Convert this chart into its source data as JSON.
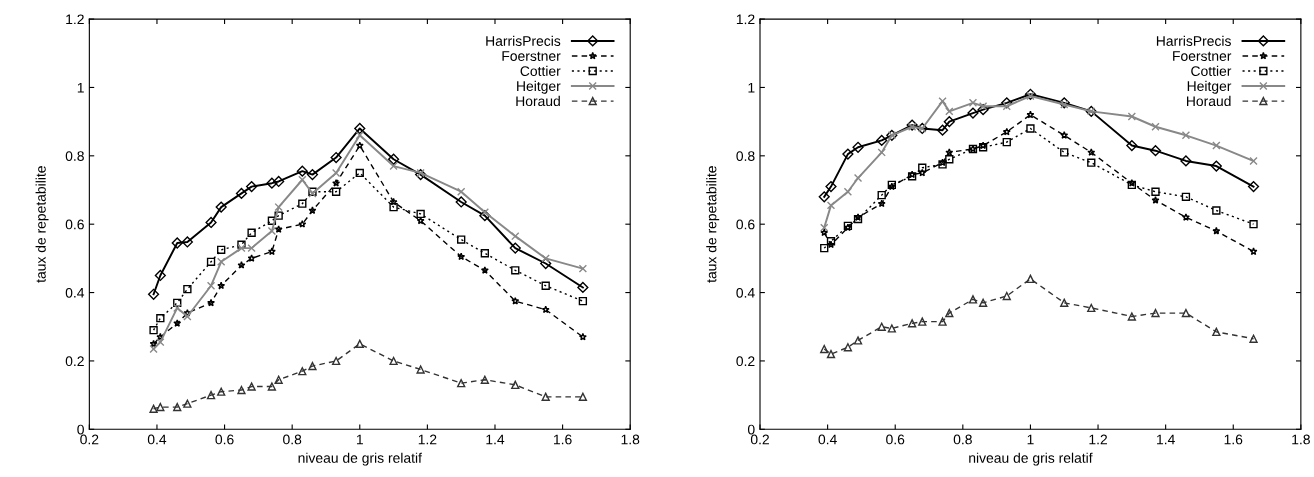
{
  "chart_data": [
    {
      "type": "line",
      "xlabel": "niveau de gris relatif",
      "ylabel": "taux de repetabilite",
      "xlim": [
        0.2,
        1.8
      ],
      "ylim": [
        0,
        1.2
      ],
      "xticks": [
        0.2,
        0.4,
        0.6,
        0.8,
        1,
        1.2,
        1.4,
        1.6,
        1.8
      ],
      "yticks": [
        0,
        0.2,
        0.4,
        0.6,
        0.8,
        1,
        1.2
      ],
      "grid": false,
      "legend": "top right",
      "x": [
        0.39,
        0.41,
        0.46,
        0.49,
        0.56,
        0.59,
        0.65,
        0.68,
        0.74,
        0.76,
        0.83,
        0.86,
        0.93,
        1.0,
        1.1,
        1.18,
        1.3,
        1.37,
        1.46,
        1.55,
        1.66
      ],
      "series": [
        {
          "name": "HarrisPrecis",
          "color": "#000000",
          "marker": "diamond",
          "line_style": "solid",
          "values": [
            0.395,
            0.45,
            0.545,
            0.548,
            0.605,
            0.65,
            0.69,
            0.71,
            0.72,
            0.725,
            0.755,
            0.745,
            0.795,
            0.88,
            0.79,
            0.745,
            0.665,
            0.625,
            0.53,
            0.485,
            0.415
          ]
        },
        {
          "name": "Foerstner",
          "color": "#000000",
          "marker": "star",
          "line_style": "dashed",
          "values": [
            0.25,
            0.27,
            0.31,
            0.34,
            0.37,
            0.42,
            0.48,
            0.5,
            0.52,
            0.585,
            0.6,
            0.64,
            0.72,
            0.83,
            0.665,
            0.61,
            0.505,
            0.465,
            0.375,
            0.35,
            0.27
          ]
        },
        {
          "name": "Cottier",
          "color": "#000000",
          "marker": "square",
          "line_style": "dotted",
          "values": [
            0.29,
            0.325,
            0.37,
            0.41,
            0.49,
            0.525,
            0.54,
            0.575,
            0.61,
            0.625,
            0.66,
            0.695,
            0.695,
            0.75,
            0.65,
            0.63,
            0.555,
            0.515,
            0.465,
            0.42,
            0.375
          ]
        },
        {
          "name": "Heitger",
          "color": "#888888",
          "marker": "cross",
          "line_style": "solid",
          "values": [
            0.235,
            0.255,
            0.355,
            0.33,
            0.42,
            0.49,
            0.53,
            0.53,
            0.58,
            0.65,
            0.73,
            0.69,
            0.75,
            0.86,
            0.77,
            0.75,
            0.695,
            0.635,
            0.565,
            0.5,
            0.47
          ]
        },
        {
          "name": "Horaud",
          "color": "#333333",
          "marker": "triangle",
          "line_style": "dashed",
          "values": [
            0.06,
            0.065,
            0.065,
            0.075,
            0.1,
            0.11,
            0.115,
            0.125,
            0.125,
            0.145,
            0.17,
            0.185,
            0.2,
            0.25,
            0.2,
            0.175,
            0.135,
            0.145,
            0.13,
            0.095,
            0.095
          ]
        }
      ]
    },
    {
      "type": "line",
      "xlabel": "niveau de gris relatif",
      "ylabel": "taux de repetabilite",
      "xlim": [
        0.2,
        1.8
      ],
      "ylim": [
        0,
        1.2
      ],
      "xticks": [
        0.2,
        0.4,
        0.6,
        0.8,
        1,
        1.2,
        1.4,
        1.6,
        1.8
      ],
      "yticks": [
        0,
        0.2,
        0.4,
        0.6,
        0.8,
        1,
        1.2
      ],
      "grid": false,
      "legend": "top right",
      "x": [
        0.39,
        0.41,
        0.46,
        0.49,
        0.56,
        0.59,
        0.65,
        0.68,
        0.74,
        0.76,
        0.83,
        0.86,
        0.93,
        1.0,
        1.1,
        1.18,
        1.3,
        1.37,
        1.46,
        1.55,
        1.66
      ],
      "series": [
        {
          "name": "HarrisPrecis",
          "color": "#000000",
          "marker": "diamond",
          "line_style": "solid",
          "values": [
            0.68,
            0.71,
            0.805,
            0.825,
            0.845,
            0.86,
            0.89,
            0.88,
            0.875,
            0.9,
            0.925,
            0.935,
            0.955,
            0.98,
            0.955,
            0.93,
            0.83,
            0.815,
            0.785,
            0.77,
            0.71
          ]
        },
        {
          "name": "Foerstner",
          "color": "#000000",
          "marker": "star",
          "line_style": "dashed",
          "values": [
            0.575,
            0.54,
            0.59,
            0.62,
            0.66,
            0.71,
            0.745,
            0.75,
            0.78,
            0.81,
            0.82,
            0.83,
            0.87,
            0.92,
            0.86,
            0.81,
            0.72,
            0.67,
            0.62,
            0.58,
            0.52
          ]
        },
        {
          "name": "Cottier",
          "color": "#000000",
          "marker": "square",
          "line_style": "dotted",
          "values": [
            0.53,
            0.55,
            0.595,
            0.615,
            0.685,
            0.715,
            0.74,
            0.765,
            0.775,
            0.79,
            0.82,
            0.825,
            0.84,
            0.88,
            0.81,
            0.78,
            0.715,
            0.695,
            0.68,
            0.64,
            0.6
          ]
        },
        {
          "name": "Heitger",
          "color": "#888888",
          "marker": "cross",
          "line_style": "solid",
          "values": [
            0.59,
            0.655,
            0.695,
            0.735,
            0.81,
            0.86,
            0.885,
            0.88,
            0.96,
            0.93,
            0.955,
            0.945,
            0.945,
            0.975,
            0.95,
            0.93,
            0.915,
            0.885,
            0.86,
            0.83,
            0.785
          ]
        },
        {
          "name": "Horaud",
          "color": "#333333",
          "marker": "triangle",
          "line_style": "dashed",
          "values": [
            0.235,
            0.22,
            0.24,
            0.26,
            0.3,
            0.295,
            0.31,
            0.315,
            0.315,
            0.34,
            0.38,
            0.37,
            0.39,
            0.44,
            0.37,
            0.355,
            0.33,
            0.34,
            0.34,
            0.285,
            0.265
          ]
        }
      ]
    }
  ]
}
